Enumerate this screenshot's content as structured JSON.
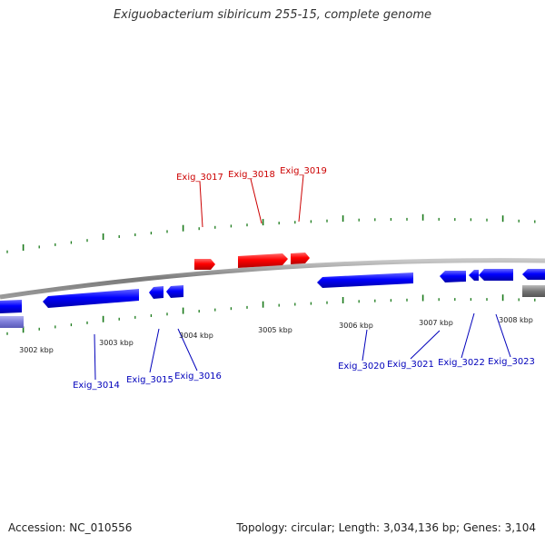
{
  "title": "Exiguobacterium sibiricum 255-15, complete genome",
  "footer": {
    "accession": "Accession: NC_010556",
    "summary": "Topology: circular; Length: 3,034,136 bp; Genes: 3,104"
  },
  "colors": {
    "forward_gene": "#ff0000",
    "reverse_gene": "#0000ff",
    "backbone": "#888888",
    "tick": "#1a7a1a",
    "forward_label": "#cc0000",
    "reverse_label": "#0000bb",
    "other_feature": "#7b7bd8"
  },
  "scale_labels": [
    "3002 kbp",
    "3003 kbp",
    "3004 kbp",
    "3005 kbp",
    "3006 kbp",
    "3007 kbp",
    "3008 kbp"
  ],
  "forward_genes": [
    {
      "label": "Exig_3017"
    },
    {
      "label": "Exig_3018"
    },
    {
      "label": "Exig_3019"
    }
  ],
  "reverse_genes": [
    {
      "label": "Exig_3014"
    },
    {
      "label": "Exig_3015"
    },
    {
      "label": "Exig_3016"
    },
    {
      "label": "Exig_3020"
    },
    {
      "label": "Exig_3021"
    },
    {
      "label": "Exig_3022"
    },
    {
      "label": "Exig_3023"
    }
  ]
}
